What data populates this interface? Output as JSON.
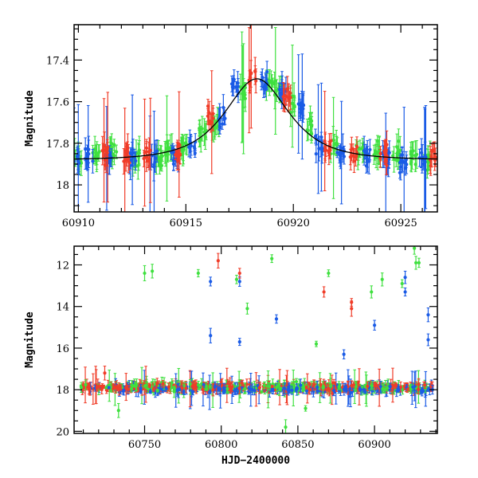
{
  "colors": {
    "green": "#3fe03f",
    "blue": "#1a5be6",
    "red": "#f03c28",
    "model": "#000000"
  },
  "chart_data": [
    {
      "type": "scatter",
      "title": "",
      "xlabel": "",
      "ylabel": "Magnitude",
      "xlim": [
        60909.8,
        60926.7
      ],
      "ylim": [
        18.13,
        17.23
      ],
      "y_inverted": true,
      "xticks": [
        60910,
        60915,
        60920,
        60925
      ],
      "xtick_labels": [
        "60910",
        "60915",
        "60920",
        "60925"
      ],
      "yticks": [
        17.4,
        17.6,
        17.8,
        18.0
      ],
      "ytick_labels": [
        "17.4",
        "17.6",
        "17.8",
        "18"
      ],
      "model_curve": {
        "baseline": 17.88,
        "peak_mag": 17.49,
        "t0": 60918.3,
        "tE": 1.9
      },
      "series": [
        {
          "color_key": "green",
          "x": [
            60910.0,
            60910.8,
            60911.6,
            60912.7,
            60913.8,
            60914.2,
            60914.9,
            60915.8,
            60916.4,
            60917.6,
            60918.9,
            60919.3,
            60919.9,
            60920.8,
            60921.9,
            60923.1,
            60923.9,
            60924.8,
            60925.6,
            60926.2
          ],
          "y": [
            17.87,
            17.85,
            17.84,
            17.87,
            17.86,
            17.85,
            17.81,
            17.75,
            17.7,
            17.55,
            17.52,
            17.55,
            17.61,
            17.72,
            17.8,
            17.85,
            17.86,
            17.86,
            17.87,
            17.88
          ]
        },
        {
          "color_key": "blue",
          "x": [
            60909.9,
            60910.5,
            60911.4,
            60912.5,
            60913.5,
            60914.5,
            60915.3,
            60916.7,
            60917.3,
            60918.6,
            60919.5,
            60920.3,
            60921.2,
            60922.2,
            60923.4,
            60924.3,
            60925.1,
            60926.0
          ],
          "y": [
            17.86,
            17.88,
            17.86,
            17.88,
            17.87,
            17.86,
            17.81,
            17.68,
            17.53,
            17.5,
            17.55,
            17.63,
            17.8,
            17.84,
            17.85,
            17.87,
            17.88,
            17.87
          ]
        },
        {
          "color_key": "red",
          "x": [
            60911.2,
            60912.2,
            60913.2,
            60914.6,
            60916.1,
            60918.1,
            60919.7,
            60921.6,
            60922.8,
            60924.2,
            60926.5
          ],
          "y": [
            17.84,
            17.85,
            17.87,
            17.85,
            17.66,
            17.49,
            17.57,
            17.83,
            17.86,
            17.86,
            17.86
          ]
        }
      ]
    },
    {
      "type": "scatter",
      "title": "",
      "xlabel": "HJD−2400000",
      "ylabel": "Magnitude",
      "xlim": [
        60704,
        60941
      ],
      "ylim": [
        20.1,
        11.1
      ],
      "y_inverted": true,
      "xticks": [
        60750,
        60800,
        60850,
        60900
      ],
      "xtick_labels": [
        "60750",
        "60800",
        "60850",
        "60900"
      ],
      "yticks": [
        12,
        14,
        16,
        18,
        20
      ],
      "ytick_labels": [
        "12",
        "14",
        "16",
        "18",
        "20"
      ],
      "baseline_mag": 17.88,
      "baseline_range": [
        60708,
        60938
      ],
      "outliers": [
        {
          "color_key": "green",
          "x": [
            60750,
            60755,
            60733,
            60785,
            60810,
            60817,
            60833,
            60862,
            60870,
            60898,
            60905,
            60918,
            60926,
            60927,
            60929,
            60855,
            60842
          ],
          "y": [
            12.4,
            12.3,
            19.0,
            12.4,
            12.7,
            14.1,
            11.7,
            15.8,
            12.4,
            13.3,
            12.7,
            12.9,
            11.2,
            11.9,
            11.9,
            18.9,
            19.8
          ]
        },
        {
          "color_key": "blue",
          "x": [
            60793,
            60793,
            60812,
            60812,
            60836,
            60880,
            60900,
            60920,
            60920,
            60935,
            60935
          ],
          "y": [
            12.8,
            15.4,
            12.8,
            15.7,
            14.6,
            16.3,
            14.9,
            12.6,
            13.3,
            14.4,
            15.6
          ]
        },
        {
          "color_key": "red",
          "x": [
            60798,
            60812,
            60867,
            60885,
            60885,
            60724
          ],
          "y": [
            11.8,
            12.4,
            13.3,
            13.8,
            14.1,
            17.2
          ]
        }
      ]
    }
  ]
}
